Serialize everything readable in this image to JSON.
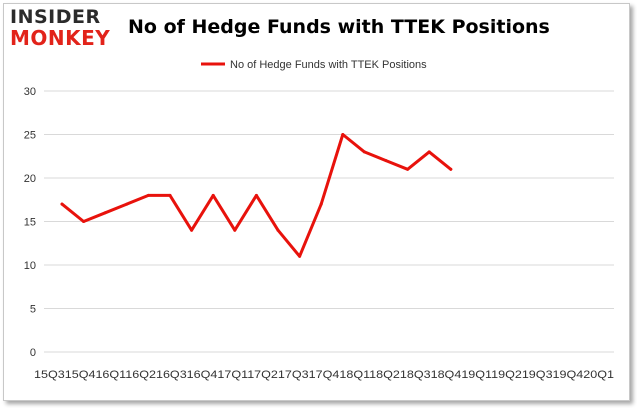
{
  "logo": {
    "line1": "INSIDER",
    "line2": "MONKEY"
  },
  "chart_data": {
    "type": "line",
    "title": "No of Hedge Funds with TTEK Positions",
    "xlabel": "",
    "ylabel": "",
    "x_tick_text": "15Q315Q416Q116Q216Q316Q417Q117Q217Q317Q418Q118Q218Q318Q419Q119Q219Q319Q420Q1",
    "categories": [
      "15Q3",
      "15Q4",
      "16Q1",
      "16Q2",
      "16Q3",
      "16Q4",
      "17Q1",
      "17Q2",
      "17Q3",
      "17Q4",
      "18Q1",
      "18Q2",
      "18Q3",
      "18Q4",
      "19Q1",
      "19Q2",
      "19Q3",
      "19Q4",
      "20Q1"
    ],
    "series": [
      {
        "name": "No of Hedge Funds with TTEK  Positions",
        "color": "#e8120c",
        "values": [
          17,
          15,
          16,
          17,
          18,
          18,
          14,
          18,
          14,
          18,
          14,
          11,
          17,
          25,
          23,
          22,
          21,
          23,
          21
        ]
      }
    ],
    "ylim": [
      0,
      30
    ],
    "yticks": [
      0,
      5,
      10,
      15,
      20,
      25,
      30
    ],
    "grid": true,
    "legend": "top-center"
  }
}
